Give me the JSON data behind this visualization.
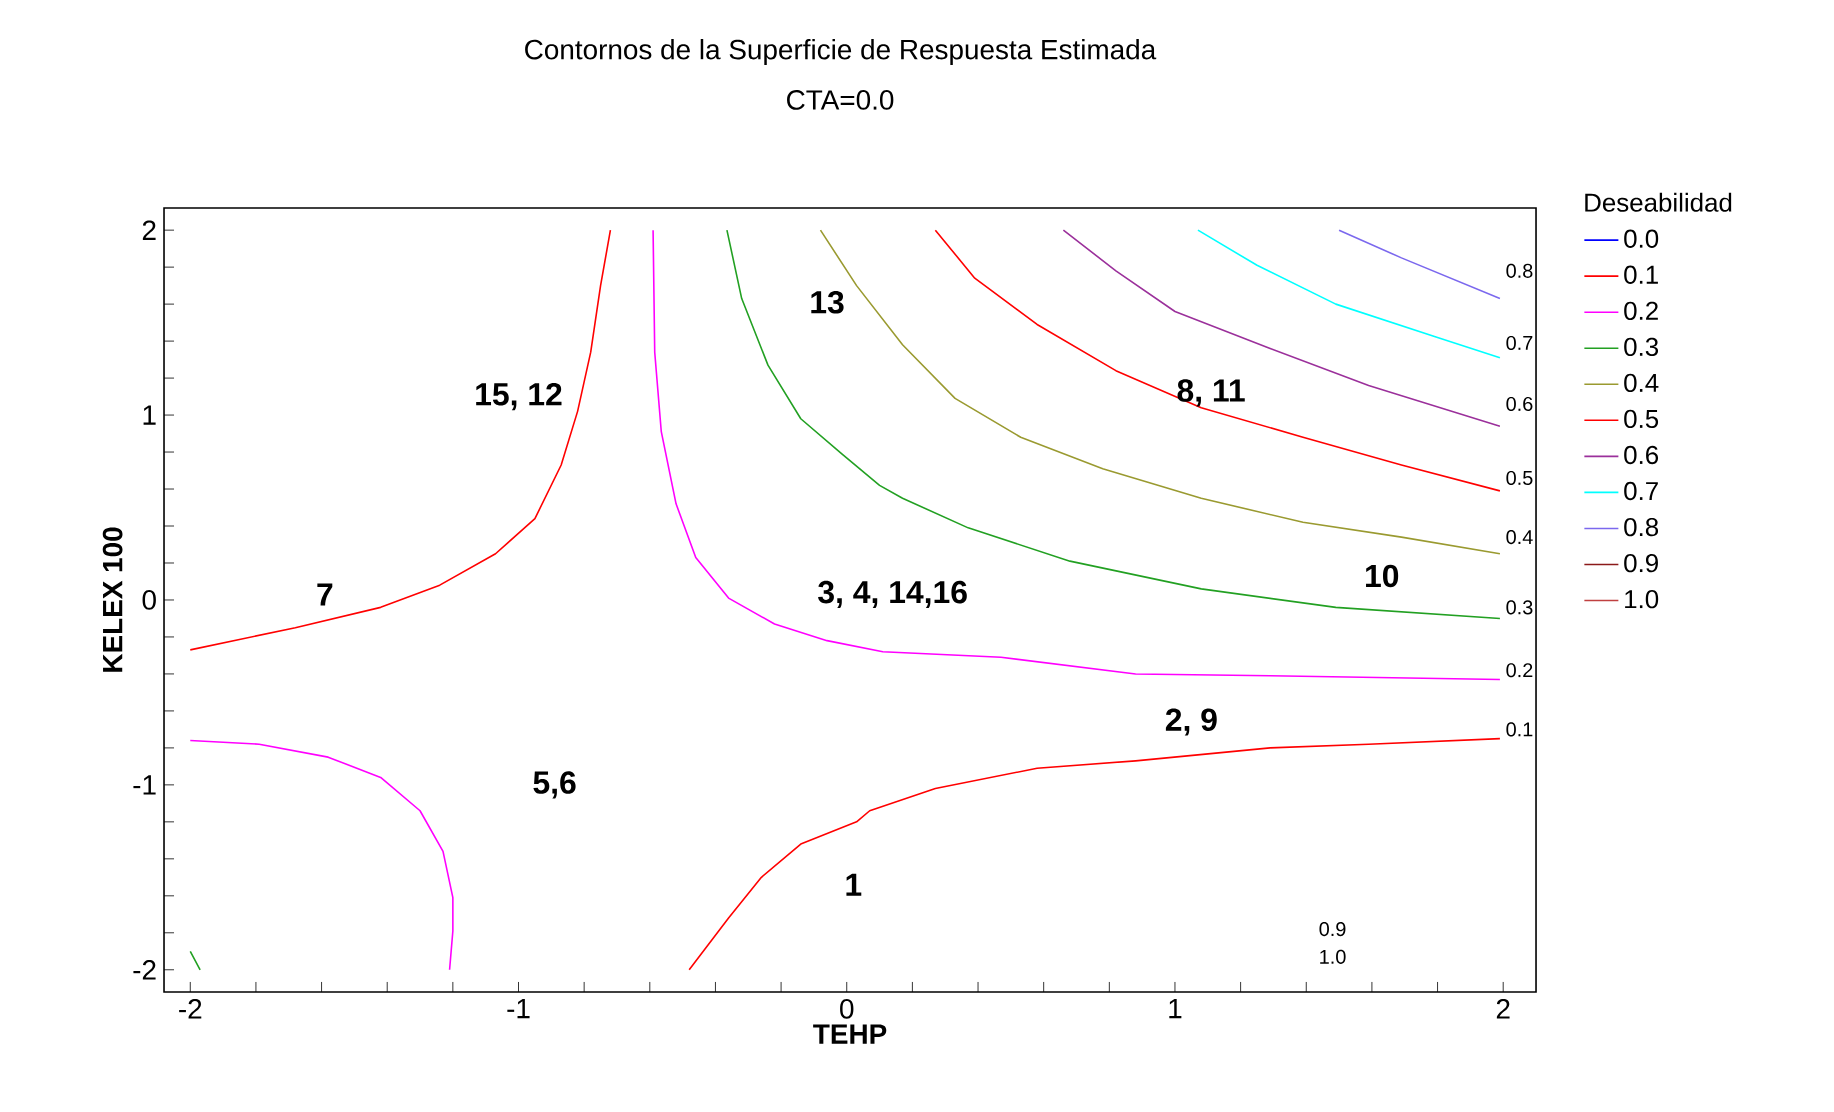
{
  "chart_data": {
    "type": "line",
    "title": "Contornos de la Superficie de Respuesta Estimada",
    "subtitle": "CTA=0.0",
    "xlabel": "TEHP",
    "ylabel": "KELEX 100",
    "legend_title": "Deseabilidad",
    "legend": "right",
    "grid": false,
    "marker": "none",
    "line_style": "solid",
    "xlim": [
      -2.08,
      2.1
    ],
    "ylim": [
      -2.12,
      2.12
    ],
    "xticks": [
      -2,
      {
        "value": -1.8,
        "label": null
      },
      {
        "value": -1.6,
        "label": null
      },
      {
        "value": -1.4,
        "label": null
      },
      {
        "value": -1.2,
        "label": null
      },
      -1,
      {
        "value": -0.8,
        "label": null
      },
      {
        "value": -0.6,
        "label": null
      },
      {
        "value": -0.4,
        "label": null
      },
      {
        "value": -0.2,
        "label": null
      },
      0,
      {
        "value": 0.2,
        "label": null
      },
      {
        "value": 0.4,
        "label": null
      },
      {
        "value": 0.6,
        "label": null
      },
      {
        "value": 0.8,
        "label": null
      },
      1,
      {
        "value": 1.2,
        "label": null
      },
      {
        "value": 1.4,
        "label": null
      },
      {
        "value": 1.6,
        "label": null
      },
      {
        "value": 1.8,
        "label": null
      },
      2
    ],
    "yticks": [
      -2,
      {
        "value": -1.8,
        "label": null
      },
      {
        "value": -1.6,
        "label": null
      },
      {
        "value": -1.4,
        "label": null
      },
      {
        "value": -1.2,
        "label": null
      },
      -1,
      {
        "value": -0.8,
        "label": null
      },
      {
        "value": -0.6,
        "label": null
      },
      {
        "value": -0.4,
        "label": null
      },
      {
        "value": -0.2,
        "label": null
      },
      0,
      {
        "value": 0.2,
        "label": null
      },
      {
        "value": 0.4,
        "label": null
      },
      {
        "value": 0.6,
        "label": null
      },
      {
        "value": 0.8,
        "label": null
      },
      1,
      {
        "value": 1.2,
        "label": null
      },
      {
        "value": 1.4,
        "label": null
      },
      {
        "value": 1.6,
        "label": null
      },
      {
        "value": 1.8,
        "label": null
      },
      2
    ],
    "series": [
      {
        "name": "0.0",
        "color": "#0000ff"
      },
      {
        "name": "0.1",
        "color": "#ff0000",
        "x": [
          -2.0,
          -1.68,
          -1.42,
          -1.24,
          -1.07,
          -0.95,
          -0.87,
          -0.82,
          -0.78,
          -0.75,
          -0.72,
          null,
          -0.48,
          -0.36,
          -0.26,
          -0.14,
          0.03,
          0.07,
          0.27,
          0.58,
          0.88,
          1.29,
          1.59,
          1.99
        ],
        "values": [
          -0.27,
          -0.15,
          -0.04,
          0.08,
          0.25,
          0.44,
          0.73,
          1.02,
          1.34,
          1.7,
          2.0,
          null,
          -2.0,
          -1.72,
          -1.5,
          -1.32,
          -1.2,
          -1.14,
          -1.02,
          -0.91,
          -0.87,
          -0.8,
          -0.78,
          -0.75
        ]
      },
      {
        "name": "0.2",
        "color": "#ff00ff",
        "x": [
          -0.59,
          -0.585,
          -0.565,
          -0.52,
          -0.46,
          -0.36,
          -0.22,
          -0.06,
          0.11,
          0.47,
          0.88,
          1.29,
          1.99,
          null,
          -2.0,
          -1.79,
          -1.58,
          -1.42,
          -1.3,
          -1.23,
          -1.2,
          -1.2,
          -1.21
        ],
        "values": [
          2.0,
          1.34,
          0.91,
          0.52,
          0.23,
          0.01,
          -0.13,
          -0.22,
          -0.28,
          -0.31,
          -0.4,
          -0.41,
          -0.43,
          null,
          -0.76,
          -0.78,
          -0.85,
          -0.96,
          -1.14,
          -1.36,
          -1.61,
          -1.79,
          -2.0
        ]
      },
      {
        "name": "0.3",
        "color": "#22a022",
        "x": [
          -0.365,
          -0.32,
          -0.24,
          -0.14,
          -0.015,
          0.1,
          0.17,
          0.37,
          0.68,
          1.08,
          1.49,
          1.99,
          null,
          -2.0,
          -1.97
        ],
        "values": [
          2.0,
          1.63,
          1.27,
          0.98,
          0.79,
          0.62,
          0.55,
          0.39,
          0.21,
          0.06,
          -0.04,
          -0.1,
          null,
          -1.9,
          -2.0
        ]
      },
      {
        "name": "0.4",
        "color": "#9a9a30",
        "x": [
          -0.08,
          0.03,
          0.17,
          0.33,
          0.53,
          0.78,
          1.08,
          1.39,
          1.69,
          1.99
        ],
        "values": [
          2.0,
          1.7,
          1.38,
          1.09,
          0.88,
          0.71,
          0.55,
          0.42,
          0.34,
          0.25
        ]
      },
      {
        "name": "0.5",
        "color": "#ff0000",
        "x": [
          0.27,
          0.39,
          0.58,
          0.82,
          1.08,
          1.39,
          1.69,
          1.99
        ],
        "values": [
          2.0,
          1.74,
          1.49,
          1.24,
          1.04,
          0.88,
          0.73,
          0.59
        ]
      },
      {
        "name": "0.6",
        "color": "#9b309b",
        "x": [
          0.66,
          0.82,
          1.0,
          1.29,
          1.59,
          1.99
        ],
        "values": [
          2.0,
          1.78,
          1.56,
          1.36,
          1.16,
          0.94
        ]
      },
      {
        "name": "0.7",
        "color": "#00ffff",
        "x": [
          1.07,
          1.25,
          1.49,
          1.8,
          1.99
        ],
        "values": [
          2.0,
          1.81,
          1.6,
          1.42,
          1.31
        ]
      },
      {
        "name": "0.8",
        "color": "#7b68ee",
        "x": [
          1.5,
          1.69,
          1.99
        ],
        "values": [
          2.0,
          1.85,
          1.63
        ]
      },
      {
        "name": "0.9",
        "color": "#8b1a1a"
      },
      {
        "name": "1.0",
        "color": "#c04040"
      }
    ],
    "annotations": [
      "13",
      "15, 12",
      "7",
      "3, 4, 14,16",
      "5,6",
      "1",
      "2, 9",
      "8, 11",
      "10",
      "0.8",
      "0.7",
      "0.6",
      "0.5",
      "0.4",
      "0.3",
      "0.2",
      "0.1",
      "0.9",
      "1.0"
    ]
  }
}
